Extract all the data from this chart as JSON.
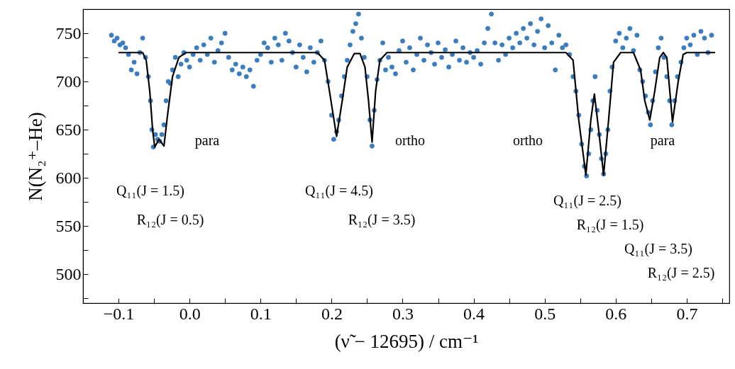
{
  "chart_data": {
    "type": "scatter",
    "xlabel": "(ν̃ − 12695) / cm⁻¹",
    "ylabel": "N(N₂⁺–He)",
    "xlim": [
      -0.15,
      0.76
    ],
    "ylim": [
      470,
      775
    ],
    "xticks": [
      {
        "value": -0.15,
        "label": null
      },
      {
        "value": -0.1,
        "label": "−0.1"
      },
      {
        "value": -0.05,
        "label": null
      },
      {
        "value": 0,
        "label": "0.0"
      },
      {
        "value": 0.05,
        "label": null
      },
      0.1,
      {
        "value": 0.15,
        "label": null
      },
      0.2,
      {
        "value": 0.25,
        "label": null
      },
      0.3,
      {
        "value": 0.35,
        "label": null
      },
      0.4,
      {
        "value": 0.45,
        "label": null
      },
      0.5,
      {
        "value": 0.55,
        "label": null
      },
      0.6,
      {
        "value": 0.65,
        "label": null
      },
      0.7,
      {
        "value": 0.75,
        "label": null
      }
    ],
    "yticks": [
      {
        "value": 475,
        "label": null
      },
      500,
      {
        "value": 525,
        "label": null
      },
      550,
      {
        "value": 575,
        "label": null
      },
      600,
      {
        "value": 625,
        "label": null
      },
      650,
      {
        "value": 675,
        "label": null
      },
      700,
      {
        "value": 725,
        "label": null
      },
      750
    ],
    "series": [
      {
        "type": "scatter",
        "marker": "circle",
        "color": "#3a7dbf",
        "x": [
          -0.11,
          -0.106,
          -0.102,
          -0.098,
          -0.094,
          -0.09,
          -0.086,
          -0.082,
          -0.078,
          -0.074,
          -0.07,
          -0.066,
          -0.062,
          -0.058,
          -0.055,
          -0.053,
          -0.051,
          -0.048,
          -0.045,
          -0.042,
          -0.039,
          -0.036,
          -0.033,
          -0.03,
          -0.027,
          -0.024,
          -0.02,
          -0.016,
          -0.012,
          -0.008,
          -0.004,
          0.0,
          0.005,
          0.01,
          0.015,
          0.02,
          0.025,
          0.03,
          0.035,
          0.04,
          0.045,
          0.05,
          0.055,
          0.06,
          0.065,
          0.07,
          0.075,
          0.08,
          0.085,
          0.09,
          0.095,
          0.1,
          0.105,
          0.11,
          0.115,
          0.12,
          0.125,
          0.13,
          0.135,
          0.14,
          0.145,
          0.15,
          0.155,
          0.16,
          0.165,
          0.17,
          0.175,
          0.18,
          0.185,
          0.19,
          0.195,
          0.2,
          0.203,
          0.207,
          0.21,
          0.214,
          0.218,
          0.222,
          0.226,
          0.23,
          0.234,
          0.238,
          0.242,
          0.246,
          0.25,
          0.254,
          0.257,
          0.26,
          0.264,
          0.268,
          0.272,
          0.276,
          0.28,
          0.285,
          0.29,
          0.295,
          0.3,
          0.305,
          0.31,
          0.315,
          0.32,
          0.325,
          0.33,
          0.335,
          0.34,
          0.345,
          0.35,
          0.355,
          0.36,
          0.365,
          0.37,
          0.375,
          0.38,
          0.385,
          0.39,
          0.395,
          0.4,
          0.405,
          0.41,
          0.415,
          0.42,
          0.425,
          0.43,
          0.435,
          0.44,
          0.445,
          0.45,
          0.455,
          0.46,
          0.465,
          0.47,
          0.475,
          0.48,
          0.485,
          0.49,
          0.495,
          0.5,
          0.505,
          0.51,
          0.515,
          0.52,
          0.525,
          0.53,
          0.535,
          0.54,
          0.544,
          0.548,
          0.552,
          0.556,
          0.559,
          0.562,
          0.565,
          0.568,
          0.571,
          0.574,
          0.577,
          0.58,
          0.583,
          0.586,
          0.589,
          0.592,
          0.595,
          0.6,
          0.605,
          0.61,
          0.615,
          0.62,
          0.625,
          0.63,
          0.634,
          0.638,
          0.642,
          0.646,
          0.649,
          0.652,
          0.656,
          0.66,
          0.664,
          0.668,
          0.672,
          0.676,
          0.679,
          0.683,
          0.687,
          0.692,
          0.696,
          0.7,
          0.705,
          0.71,
          0.715,
          0.72,
          0.725,
          0.73,
          0.735
        ],
        "values": [
          748,
          742,
          745,
          738,
          740,
          735,
          728,
          712,
          720,
          708,
          730,
          745,
          725,
          705,
          680,
          650,
          632,
          645,
          640,
          638,
          645,
          655,
          680,
          700,
          698,
          712,
          725,
          705,
          718,
          730,
          722,
          715,
          728,
          735,
          722,
          738,
          728,
          745,
          720,
          732,
          740,
          750,
          725,
          712,
          718,
          708,
          715,
          705,
          712,
          695,
          722,
          728,
          740,
          735,
          720,
          745,
          738,
          722,
          750,
          742,
          730,
          715,
          738,
          725,
          710,
          735,
          720,
          730,
          742,
          722,
          700,
          665,
          640,
          648,
          660,
          685,
          705,
          722,
          738,
          752,
          760,
          770,
          745,
          725,
          705,
          660,
          633,
          670,
          702,
          722,
          740,
          712,
          725,
          715,
          708,
          732,
          742,
          720,
          735,
          712,
          728,
          745,
          722,
          738,
          730,
          718,
          740,
          725,
          733,
          715,
          728,
          742,
          722,
          735,
          720,
          730,
          725,
          732,
          718,
          740,
          755,
          770,
          740,
          722,
          738,
          728,
          745,
          735,
          750,
          740,
          755,
          745,
          760,
          738,
          752,
          765,
          735,
          758,
          740,
          712,
          748,
          735,
          738,
          728,
          705,
          690,
          665,
          635,
          612,
          602,
          625,
          650,
          680,
          705,
          670,
          645,
          620,
          604,
          625,
          650,
          690,
          715,
          742,
          750,
          735,
          745,
          755,
          732,
          748,
          712,
          700,
          685,
          668,
          655,
          680,
          710,
          735,
          745,
          725,
          705,
          680,
          655,
          680,
          705,
          720,
          735,
          745,
          738,
          748,
          728,
          752,
          745,
          730,
          748
        ]
      },
      {
        "type": "line",
        "color": "#000000",
        "x": [
          -0.1,
          -0.066,
          -0.061,
          -0.056,
          -0.052,
          -0.049,
          -0.043,
          -0.036,
          -0.031,
          -0.024,
          -0.015,
          -0.005,
          0.18,
          0.19,
          0.197,
          0.207,
          0.215,
          0.222,
          0.232,
          0.24,
          0.247,
          0.252,
          0.257,
          0.262,
          0.268,
          0.278,
          0.53,
          0.54,
          0.548,
          0.558,
          0.565,
          0.57,
          0.576,
          0.583,
          0.59,
          0.597,
          0.607,
          0.625,
          0.635,
          0.641,
          0.648,
          0.655,
          0.662,
          0.667,
          0.672,
          0.68,
          0.688,
          0.695,
          0.7,
          0.74
        ],
        "values": [
          730,
          730,
          722,
          690,
          650,
          632,
          640,
          633,
          665,
          705,
          725,
          730,
          730,
          722,
          690,
          643,
          680,
          715,
          729,
          729,
          715,
          680,
          637,
          690,
          722,
          730,
          730,
          722,
          660,
          603,
          660,
          687,
          650,
          603,
          660,
          720,
          730,
          730,
          712,
          680,
          660,
          690,
          725,
          730,
          725,
          658,
          700,
          728,
          730,
          730
        ]
      }
    ],
    "annotations": [
      "para",
      "Q₁₁(J = 1.5)",
      "R₁₂(J = 0.5)",
      "Q₁₁(J = 4.5)",
      "R₁₂(J = 3.5)",
      "ortho",
      "ortho",
      "Q₁₁(J = 2.5)",
      "R₁₂(J = 1.5)",
      "Q₁₁(J = 3.5)",
      "para",
      "R₁₂(J = 2.5)"
    ]
  }
}
